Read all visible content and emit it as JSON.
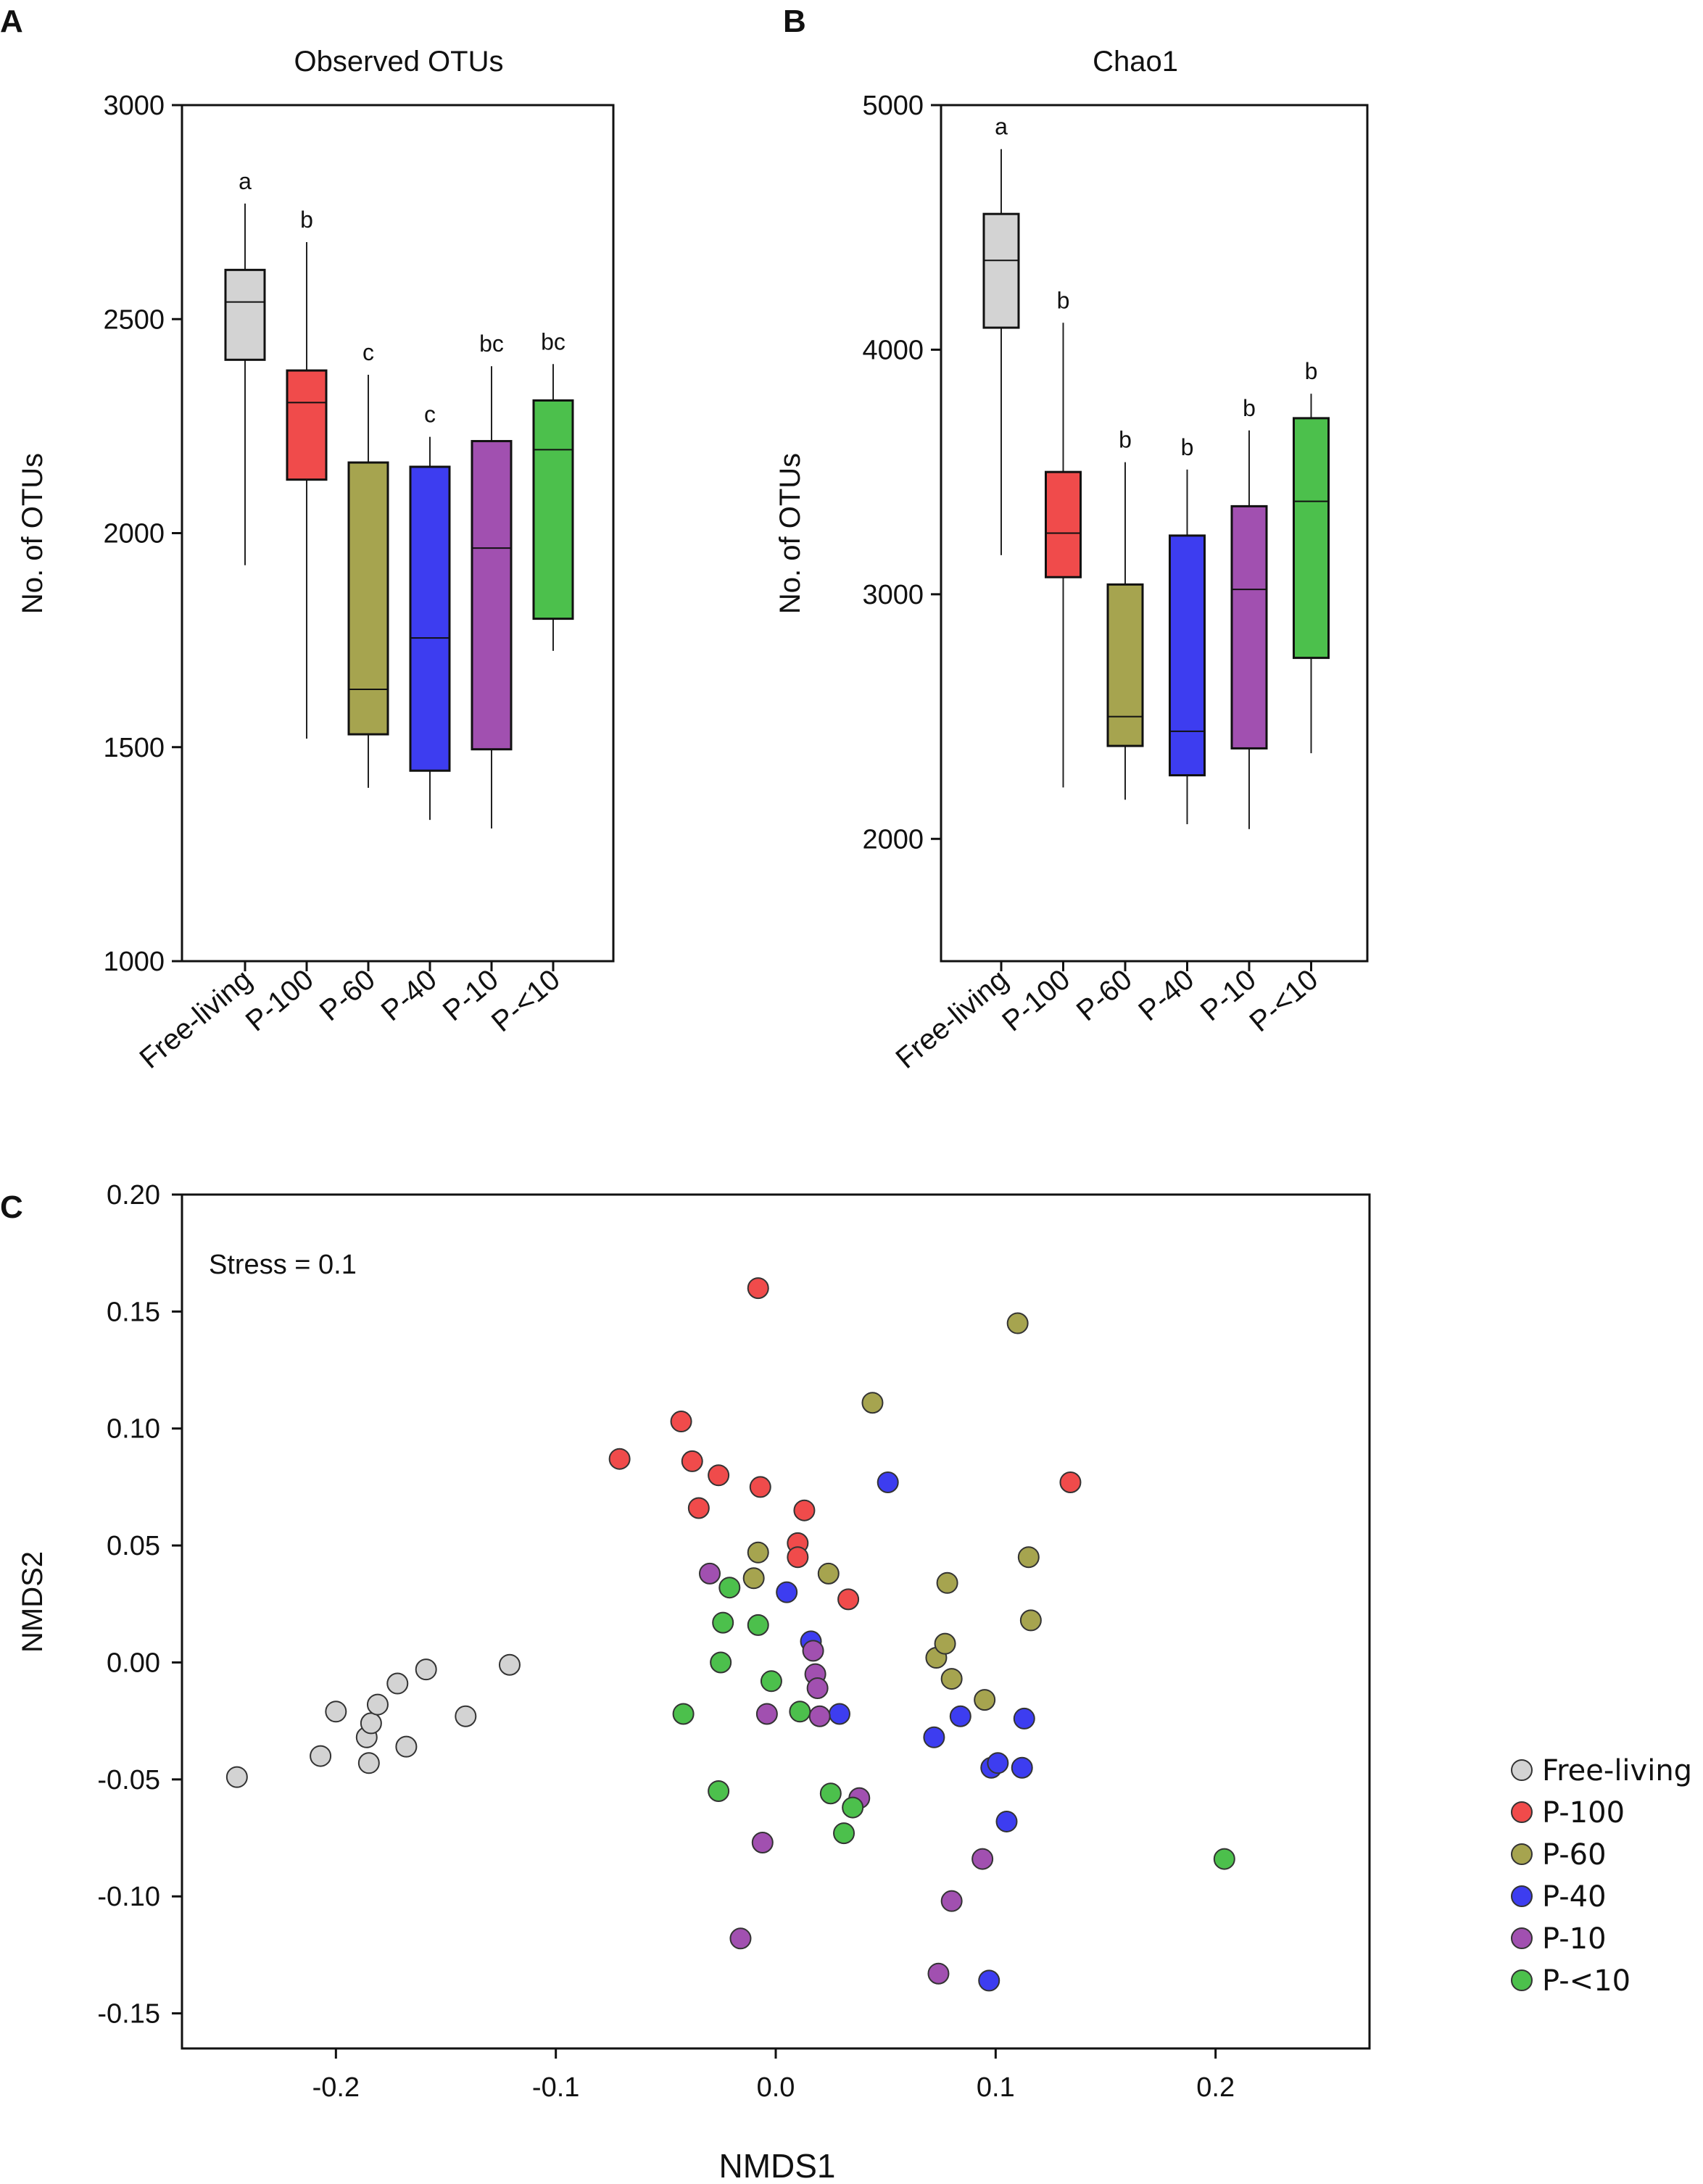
{
  "panels": {
    "A": {
      "letter": "A"
    },
    "B": {
      "letter": "B"
    },
    "C": {
      "letter": "C"
    }
  },
  "colors": {
    "Free-living": "#d3d3d3",
    "P-100": "#f04b4b",
    "P-60": "#a6a44f",
    "P-40": "#3d3df0",
    "P-10": "#a150b0",
    "P-<10": "#4cc04c"
  },
  "chart_data": [
    {
      "type": "box",
      "panel": "A",
      "title": "Observed OTUs",
      "ylabel": "No. of OTUs",
      "xlabel": "",
      "ylim": [
        1000,
        3000
      ],
      "yticks": [
        1000,
        1500,
        2000,
        2500,
        3000
      ],
      "ytick_labels": [
        "1000",
        "1500",
        "2000",
        "2500",
        "3000"
      ],
      "categories": [
        "Free-living",
        "P-100",
        "P-60",
        "P-40",
        "P-10",
        "P-<10"
      ],
      "boxes": [
        {
          "name": "Free-living",
          "whisker_low": 1925,
          "q1": 2405,
          "median": 2540,
          "q3": 2615,
          "whisker_high": 2770,
          "sig": "a"
        },
        {
          "name": "P-100",
          "whisker_low": 1520,
          "q1": 2125,
          "median": 2305,
          "q3": 2380,
          "whisker_high": 2680,
          "sig": "b"
        },
        {
          "name": "P-60",
          "whisker_low": 1405,
          "q1": 1530,
          "median": 1635,
          "q3": 2165,
          "whisker_high": 2370,
          "sig": "c"
        },
        {
          "name": "P-40",
          "whisker_low": 1330,
          "q1": 1445,
          "median": 1755,
          "q3": 2155,
          "whisker_high": 2225,
          "sig": "c"
        },
        {
          "name": "P-10",
          "whisker_low": 1310,
          "q1": 1495,
          "median": 1965,
          "q3": 2215,
          "whisker_high": 2390,
          "sig": "bc"
        },
        {
          "name": "P-<10",
          "whisker_low": 1725,
          "q1": 1800,
          "median": 2195,
          "q3": 2310,
          "whisker_high": 2395,
          "sig": "bc"
        }
      ]
    },
    {
      "type": "box",
      "panel": "B",
      "title": "Chao1",
      "ylabel": "No. of OTUs",
      "xlabel": "",
      "ylim": [
        1500,
        5000
      ],
      "yticks": [
        2000,
        3000,
        4000,
        5000
      ],
      "ytick_labels": [
        "2000",
        "3000",
        "4000",
        "5000"
      ],
      "categories": [
        "Free-living",
        "P-100",
        "P-60",
        "P-40",
        "P-10",
        "P-<10"
      ],
      "boxes": [
        {
          "name": "Free-living",
          "whisker_low": 3160,
          "q1": 4090,
          "median": 4365,
          "q3": 4555,
          "whisker_high": 4820,
          "sig": "a"
        },
        {
          "name": "P-100",
          "whisker_low": 2210,
          "q1": 3070,
          "median": 3250,
          "q3": 3500,
          "whisker_high": 4110,
          "sig": "b"
        },
        {
          "name": "P-60",
          "whisker_low": 2160,
          "q1": 2380,
          "median": 2500,
          "q3": 3040,
          "whisker_high": 3540,
          "sig": "b"
        },
        {
          "name": "P-40",
          "whisker_low": 2060,
          "q1": 2260,
          "median": 2440,
          "q3": 3240,
          "whisker_high": 3510,
          "sig": "b"
        },
        {
          "name": "P-10",
          "whisker_low": 2040,
          "q1": 2370,
          "median": 3020,
          "q3": 3360,
          "whisker_high": 3670,
          "sig": "b"
        },
        {
          "name": "P-<10",
          "whisker_low": 2350,
          "q1": 2740,
          "median": 3380,
          "q3": 3720,
          "whisker_high": 3820,
          "sig": "b"
        }
      ]
    },
    {
      "type": "scatter",
      "panel": "C",
      "title": "",
      "xlabel": "NMDS1",
      "ylabel": "NMDS2",
      "xlim": [
        -0.27,
        0.27
      ],
      "ylim": [
        -0.165,
        0.2
      ],
      "xticks": [
        -0.2,
        -0.1,
        0.0,
        0.1,
        0.2
      ],
      "xtick_labels": [
        "-0.2",
        "-0.1",
        "0.0",
        "0.1",
        "0.2"
      ],
      "yticks": [
        -0.15,
        -0.1,
        -0.05,
        0.0,
        0.05,
        0.1,
        0.15,
        0.2
      ],
      "ytick_labels": [
        "-0.15",
        "-0.10",
        "-0.05",
        "0.00",
        "0.05",
        "0.10",
        "0.15",
        "0.20"
      ],
      "annotation": "Stress = 0.1",
      "legend_position": "right",
      "series": [
        {
          "name": "Free-living",
          "points": [
            [
              -0.245,
              -0.049
            ],
            [
              -0.207,
              -0.04
            ],
            [
              -0.2,
              -0.021
            ],
            [
              -0.186,
              -0.032
            ],
            [
              -0.184,
              -0.026
            ],
            [
              -0.185,
              -0.043
            ],
            [
              -0.181,
              -0.018
            ],
            [
              -0.172,
              -0.009
            ],
            [
              -0.168,
              -0.036
            ],
            [
              -0.159,
              -0.003
            ],
            [
              -0.141,
              -0.023
            ],
            [
              -0.121,
              -0.001
            ]
          ]
        },
        {
          "name": "P-100",
          "points": [
            [
              -0.071,
              0.087
            ],
            [
              -0.043,
              0.103
            ],
            [
              -0.038,
              0.086
            ],
            [
              -0.035,
              0.066
            ],
            [
              -0.026,
              0.08
            ],
            [
              -0.008,
              0.16
            ],
            [
              -0.007,
              0.075
            ],
            [
              0.01,
              0.051
            ],
            [
              0.01,
              0.045
            ],
            [
              0.013,
              0.065
            ],
            [
              0.033,
              0.027
            ],
            [
              0.134,
              0.077
            ]
          ]
        },
        {
          "name": "P-60",
          "points": [
            [
              -0.008,
              0.047
            ],
            [
              -0.01,
              0.036
            ],
            [
              0.024,
              0.038
            ],
            [
              0.044,
              0.111
            ],
            [
              0.073,
              0.002
            ],
            [
              0.077,
              0.008
            ],
            [
              0.078,
              0.034
            ],
            [
              0.08,
              -0.007
            ],
            [
              0.095,
              -0.016
            ],
            [
              0.11,
              0.145
            ],
            [
              0.115,
              0.045
            ],
            [
              0.116,
              0.018
            ]
          ]
        },
        {
          "name": "P-40",
          "points": [
            [
              0.005,
              0.03
            ],
            [
              0.016,
              0.009
            ],
            [
              0.029,
              -0.022
            ],
            [
              0.051,
              0.077
            ],
            [
              0.072,
              -0.032
            ],
            [
              0.084,
              -0.023
            ],
            [
              0.098,
              -0.045
            ],
            [
              0.101,
              -0.043
            ],
            [
              0.105,
              -0.068
            ],
            [
              0.112,
              -0.045
            ],
            [
              0.113,
              -0.024
            ],
            [
              0.097,
              -0.136
            ]
          ]
        },
        {
          "name": "P-10",
          "points": [
            [
              -0.03,
              0.038
            ],
            [
              -0.016,
              -0.118
            ],
            [
              -0.006,
              -0.077
            ],
            [
              -0.004,
              -0.022
            ],
            [
              0.017,
              0.005
            ],
            [
              0.018,
              -0.005
            ],
            [
              0.019,
              -0.011
            ],
            [
              0.02,
              -0.023
            ],
            [
              0.038,
              -0.058
            ],
            [
              0.074,
              -0.133
            ],
            [
              0.08,
              -0.102
            ],
            [
              0.094,
              -0.084
            ]
          ]
        },
        {
          "name": "P-<10",
          "points": [
            [
              -0.042,
              -0.022
            ],
            [
              -0.026,
              -0.055
            ],
            [
              -0.025,
              0.0
            ],
            [
              -0.024,
              0.017
            ],
            [
              -0.021,
              0.032
            ],
            [
              -0.008,
              0.016
            ],
            [
              -0.002,
              -0.008
            ],
            [
              0.011,
              -0.021
            ],
            [
              0.025,
              -0.056
            ],
            [
              0.031,
              -0.073
            ],
            [
              0.035,
              -0.062
            ],
            [
              0.204,
              -0.084
            ]
          ]
        }
      ]
    }
  ]
}
